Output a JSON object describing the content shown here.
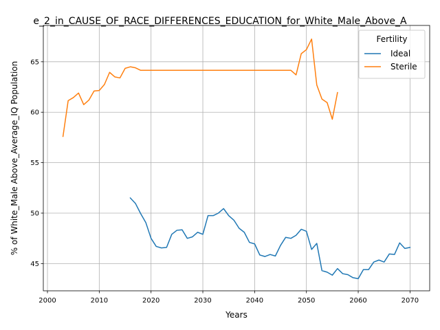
{
  "chart_data": {
    "type": "line",
    "title": "e_2_in_CAUSE_OF_RACE_DIFFERENCES_EDUCATION_for_White_Male_Above_A",
    "xlabel": "Years",
    "ylabel": "% of White_Male Above_Average_IQ Population",
    "xlim": [
      1999.2,
      2073.8
    ],
    "ylim": [
      42.3,
      68.6
    ],
    "xticks": [
      2000,
      2010,
      2020,
      2030,
      2040,
      2050,
      2060,
      2070
    ],
    "yticks": [
      45,
      50,
      55,
      60,
      65
    ],
    "grid": true,
    "legend": {
      "title": "Fertility",
      "position": "top-right"
    },
    "series": [
      {
        "name": "Ideal",
        "color": "#1f77b4",
        "x": [
          2016,
          2017,
          2018,
          2019,
          2020,
          2021,
          2022,
          2023,
          2024,
          2025,
          2026,
          2027,
          2028,
          2029,
          2030,
          2031,
          2032,
          2033,
          2034,
          2035,
          2036,
          2037,
          2038,
          2039,
          2040,
          2041,
          2042,
          2043,
          2044,
          2045,
          2046,
          2047,
          2048,
          2049,
          2050,
          2051,
          2052,
          2053,
          2054,
          2055,
          2056,
          2057,
          2058,
          2059,
          2060,
          2061,
          2062,
          2063,
          2064,
          2065,
          2066,
          2067,
          2068,
          2069,
          2070
        ],
        "values": [
          51.5,
          50.95,
          49.95,
          49.05,
          47.5,
          46.7,
          46.55,
          46.6,
          47.9,
          48.3,
          48.35,
          47.5,
          47.65,
          48.1,
          47.9,
          49.75,
          49.75,
          50.0,
          50.45,
          49.75,
          49.3,
          48.5,
          48.1,
          47.1,
          46.95,
          45.85,
          45.7,
          45.9,
          45.75,
          46.8,
          47.6,
          47.5,
          47.8,
          48.4,
          48.2,
          46.4,
          47.0,
          44.3,
          44.15,
          43.85,
          44.5,
          44.0,
          43.9,
          43.6,
          43.5,
          44.4,
          44.4,
          45.15,
          45.35,
          45.15,
          45.95,
          45.9,
          47.05,
          46.5,
          46.6
        ]
      },
      {
        "name": "Sterile",
        "color": "#ff7f0e",
        "x": [
          2003,
          2004,
          2005,
          2006,
          2007,
          2008,
          2009,
          2010,
          2011,
          2012,
          2013,
          2014,
          2015,
          2016,
          2017,
          2018,
          2019,
          2020,
          2021,
          2022,
          2023,
          2024,
          2025,
          2026,
          2027,
          2028,
          2029,
          2030,
          2031,
          2032,
          2033,
          2034,
          2035,
          2036,
          2037,
          2038,
          2039,
          2040,
          2041,
          2042,
          2043,
          2044,
          2045,
          2046,
          2047,
          2048,
          2049,
          2050,
          2051,
          2052,
          2053,
          2054,
          2055,
          2056
        ],
        "values": [
          57.6,
          61.15,
          61.45,
          61.9,
          60.75,
          61.2,
          62.1,
          62.15,
          62.75,
          63.95,
          63.5,
          63.4,
          64.35,
          64.5,
          64.4,
          64.15,
          64.15,
          64.15,
          64.15,
          64.15,
          64.15,
          64.15,
          64.15,
          64.15,
          64.15,
          64.15,
          64.15,
          64.15,
          64.15,
          64.15,
          64.15,
          64.15,
          64.15,
          64.15,
          64.15,
          64.15,
          64.15,
          64.15,
          64.15,
          64.15,
          64.15,
          64.15,
          64.15,
          64.15,
          64.15,
          63.7,
          65.8,
          66.2,
          67.25,
          62.7,
          61.3,
          60.95,
          59.3,
          61.95
        ]
      }
    ]
  }
}
